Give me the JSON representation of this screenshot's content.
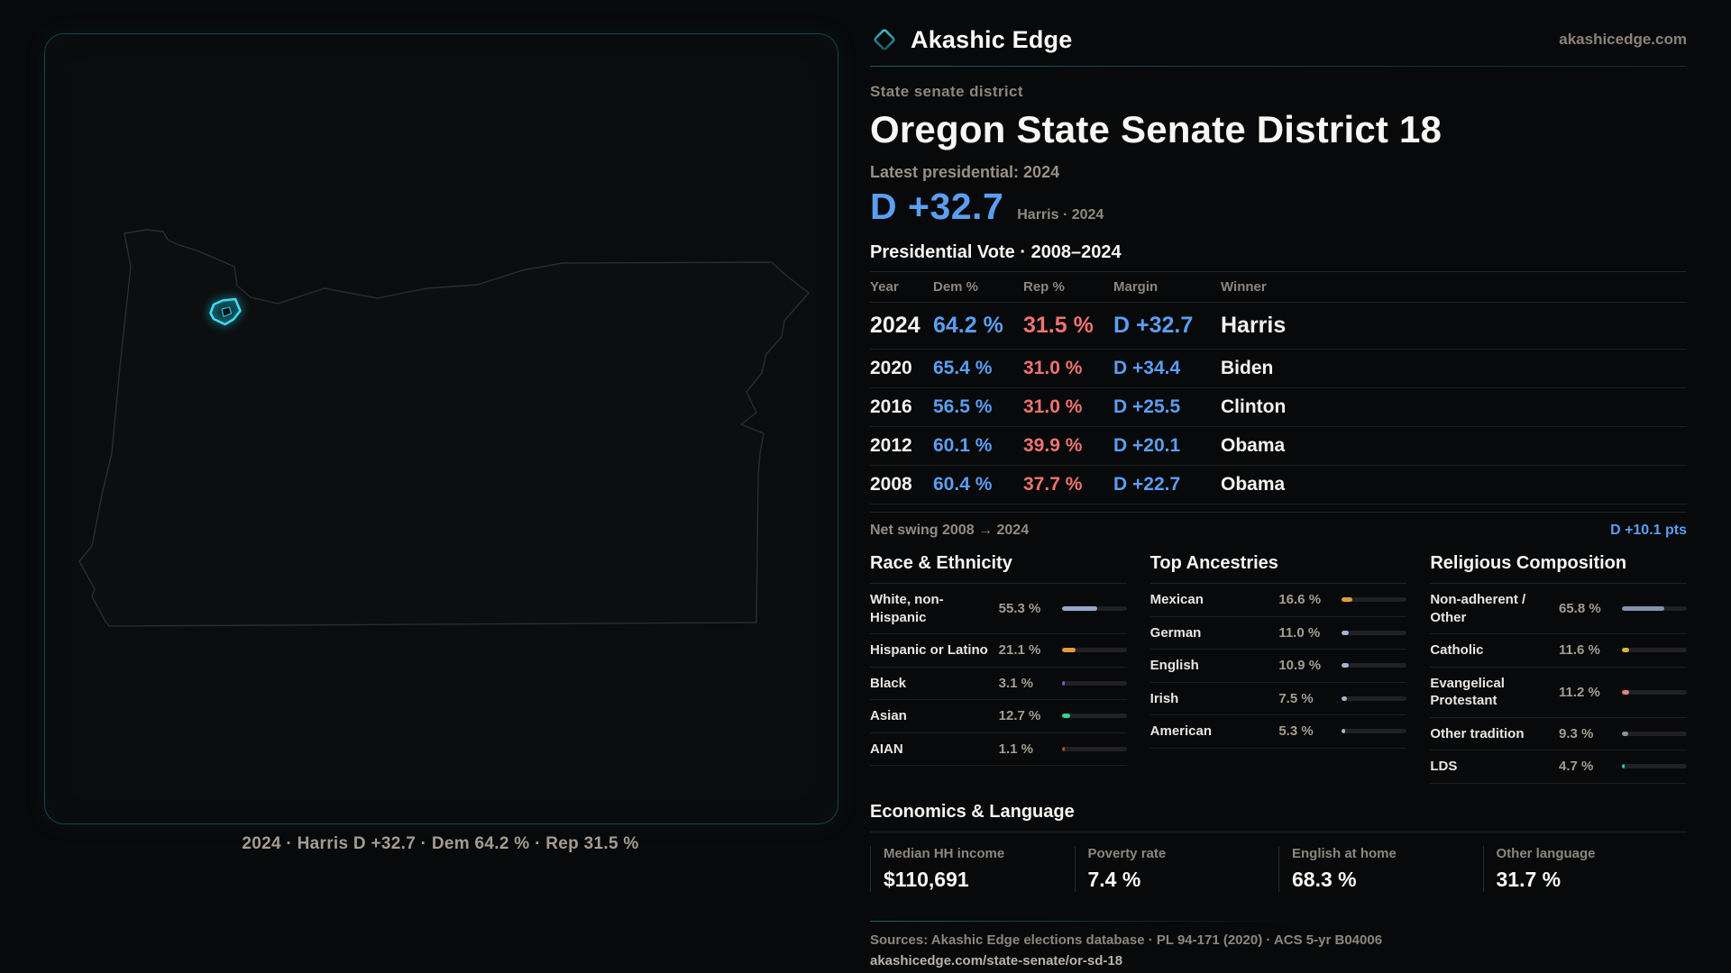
{
  "brand": {
    "name": "Akashic Edge",
    "site": "akashicedge.com"
  },
  "page": {
    "kicker": "State senate district",
    "title": "Oregon State Senate District 18",
    "latest_label": "Latest presidential: 2024",
    "headline_margin": "D +32.7",
    "headline_sub": "Harris · 2024"
  },
  "map": {
    "caption": "2024 · Harris D +32.7 · Dem 64.2 % · Rep 31.5 %"
  },
  "table": {
    "title": "Presidential Vote · 2008–2024",
    "columns": [
      "Year",
      "Dem %",
      "Rep %",
      "Margin",
      "Winner"
    ],
    "rows": [
      {
        "year": "2024",
        "dem": "64.2 %",
        "rep": "31.5 %",
        "margin": "D +32.7",
        "winner": "Harris"
      },
      {
        "year": "2020",
        "dem": "65.4 %",
        "rep": "31.0 %",
        "margin": "D +34.4",
        "winner": "Biden"
      },
      {
        "year": "2016",
        "dem": "56.5 %",
        "rep": "31.0 %",
        "margin": "D +25.5",
        "winner": "Clinton"
      },
      {
        "year": "2012",
        "dem": "60.1 %",
        "rep": "39.9 %",
        "margin": "D +20.1",
        "winner": "Obama"
      },
      {
        "year": "2008",
        "dem": "60.4 %",
        "rep": "37.7 %",
        "margin": "D +22.7",
        "winner": "Obama"
      }
    ],
    "net_swing_label": "Net swing 2008 → 2024",
    "net_swing_value": "D +10.1 pts"
  },
  "demographics": {
    "sections": [
      {
        "title": "Race & Ethnicity",
        "rows": [
          {
            "label": "White, non-Hispanic",
            "value": 55.3,
            "value_label": "55.3 %",
            "color": "#92a9c9"
          },
          {
            "label": "Hispanic or Latino",
            "value": 21.1,
            "value_label": "21.1 %",
            "color": "#e09b3d"
          },
          {
            "label": "Black",
            "value": 3.1,
            "value_label": "3.1 %",
            "color": "#7c5cf0"
          },
          {
            "label": "Asian",
            "value": 12.7,
            "value_label": "12.7 %",
            "color": "#34d399"
          },
          {
            "label": "AIAN",
            "value": 1.1,
            "value_label": "1.1 %",
            "color": "#b45309"
          }
        ]
      },
      {
        "title": "Top Ancestries",
        "rows": [
          {
            "label": "Mexican",
            "value": 16.6,
            "value_label": "16.6 %",
            "color": "#e09b3d"
          },
          {
            "label": "German",
            "value": 11.0,
            "value_label": "11.0 %",
            "color": "#9fb6d2"
          },
          {
            "label": "English",
            "value": 10.9,
            "value_label": "10.9 %",
            "color": "#9fb6d2"
          },
          {
            "label": "Irish",
            "value": 7.5,
            "value_label": "7.5 %",
            "color": "#9fb6d2"
          },
          {
            "label": "American",
            "value": 5.3,
            "value_label": "5.3 %",
            "color": "#9fb6d2"
          }
        ]
      },
      {
        "title": "Religious Composition",
        "rows": [
          {
            "label": "Non-adherent / Other",
            "value": 65.8,
            "value_label": "65.8 %",
            "color": "#8093ab"
          },
          {
            "label": "Catholic",
            "value": 11.6,
            "value_label": "11.6 %",
            "color": "#ddb33f"
          },
          {
            "label": "Evangelical Protestant",
            "value": 11.2,
            "value_label": "11.2 %",
            "color": "#e57f7f"
          },
          {
            "label": "Other tradition",
            "value": 9.3,
            "value_label": "9.3 %",
            "color": "#8f9399"
          },
          {
            "label": "LDS",
            "value": 4.7,
            "value_label": "4.7 %",
            "color": "#27c8bb"
          }
        ]
      }
    ]
  },
  "economics": {
    "title": "Economics & Language",
    "stats": [
      {
        "label": "Median HH income",
        "value": "$110,691"
      },
      {
        "label": "Poverty rate",
        "value": "7.4 %"
      },
      {
        "label": "English at home",
        "value": "68.3 %"
      },
      {
        "label": "Other language",
        "value": "31.7 %"
      }
    ]
  },
  "footer": {
    "sources": "Sources: Akashic Edge elections database · PL 94-171 (2020) · ACS 5-yr B04006",
    "permalink": "akashicedge.com/state-senate/or-sd-18"
  },
  "colors": {
    "dem_blue": "#5b9ef2",
    "rep_red": "#ee7373",
    "accent_teal": "#22d3ee"
  }
}
